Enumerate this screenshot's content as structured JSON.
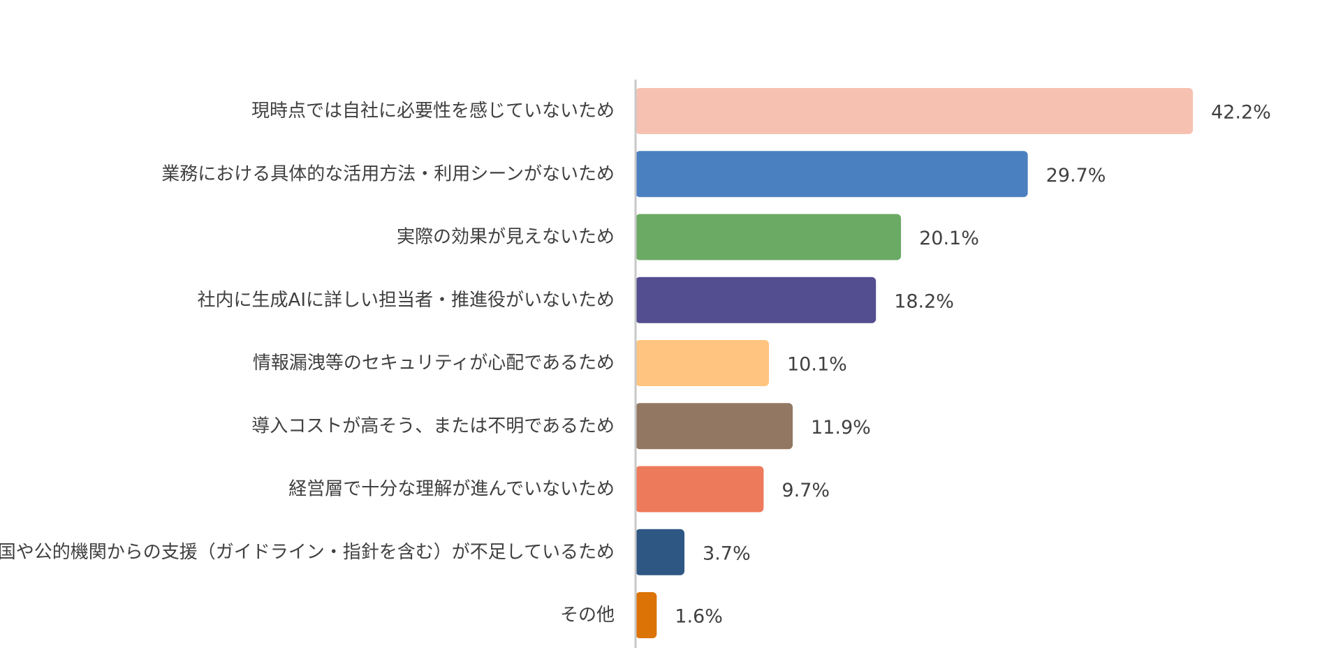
{
  "chart_data": {
    "type": "bar",
    "orientation": "horizontal",
    "title": "",
    "xlabel": "",
    "ylabel": "",
    "xlim": [
      0,
      50
    ],
    "grid": false,
    "legend": "none",
    "categories": [
      "現時点では自社に必要性を感じていないため",
      "業務における具体的な活用方法・利用シーンがないため",
      "実際の効果が見えないため",
      "社内に生成AIに詳しい担当者・推進役がいないため",
      "情報漏洩等のセキュリティが心配であるため",
      "導入コストが高そう、または不明であるため",
      "経営層で十分な理解が進んでいないため",
      "国や公的機関からの支援（ガイドライン・指針を含む）が不足しているため",
      "その他"
    ],
    "values": [
      42.2,
      29.7,
      20.1,
      18.2,
      10.1,
      11.9,
      9.7,
      3.7,
      1.6
    ],
    "value_labels": [
      "42.2%",
      "29.7%",
      "20.1%",
      "18.2%",
      "10.1%",
      "11.9%",
      "9.7%",
      "3.7%",
      "1.6%"
    ],
    "colors": [
      "#F7C1B1",
      "#4A80C0",
      "#6BAA64",
      "#524E8F",
      "#FFC47F",
      "#927862",
      "#EE7A5C",
      "#2E5784",
      "#DC7306"
    ],
    "axis_color": "#C8C8C8",
    "label_color": "#404040"
  }
}
